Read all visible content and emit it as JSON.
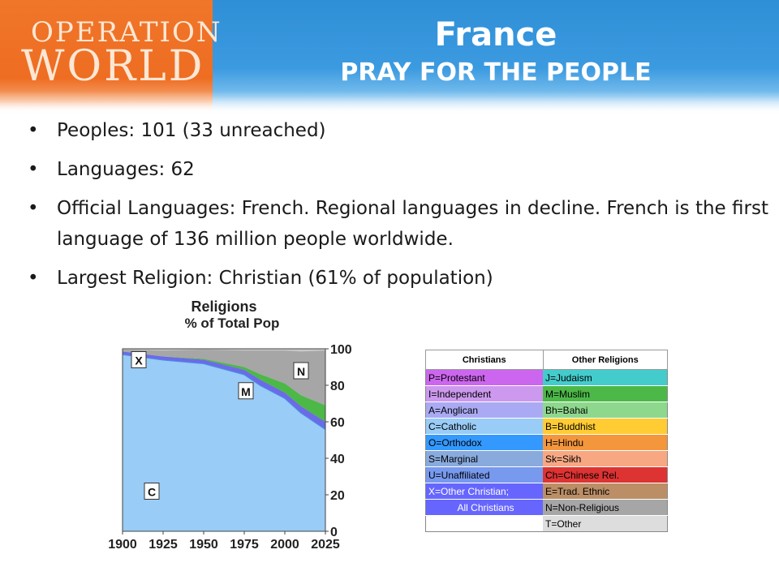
{
  "logo": {
    "line1": "OPERATION",
    "line2": "WORLD"
  },
  "header": {
    "title": "France",
    "subtitle": "PRAY FOR THE PEOPLE"
  },
  "bullets": [
    {
      "text": "Peoples: 101 (33 unreached)"
    },
    {
      "text": "Languages: 62"
    },
    {
      "text": "Official Languages: French. Regional languages in decline. French is the first language of 136 million people worldwide."
    },
    {
      "text": "Largest Religion: Christian (61% of population)"
    }
  ],
  "colors": {
    "catholic": "#99ccf6",
    "orthodox": "#4a8fe6",
    "independent": "#6b6be8",
    "muslim": "#4cb848",
    "nonreligious": "#a6a6a6",
    "other_top": "#c8c8c8"
  },
  "chart_data": {
    "type": "area",
    "title": "Religions",
    "subtitle": "% of Total Pop",
    "x": [
      1900,
      1925,
      1950,
      1975,
      1985,
      2000,
      2010,
      2025
    ],
    "xlim": [
      1900,
      2025
    ],
    "ylim": [
      0,
      100
    ],
    "x_ticks": [
      "1900",
      "1925",
      "1950",
      "1975",
      "2000",
      "2025"
    ],
    "y_ticks": [
      "0",
      "20",
      "40",
      "60",
      "80",
      "100"
    ],
    "series": [
      {
        "name": "C",
        "values": [
          97,
          94,
          92,
          86,
          80,
          73,
          65,
          56
        ]
      },
      {
        "name": "X",
        "values": [
          1.5,
          1.8,
          2,
          2.5,
          3,
          3,
          3.5,
          4
        ]
      },
      {
        "name": "M",
        "values": [
          0,
          0,
          0.5,
          1.5,
          3,
          5,
          6,
          9
        ]
      },
      {
        "name": "N",
        "values": [
          1,
          3.2,
          5,
          9,
          13,
          18,
          24,
          30
        ]
      }
    ],
    "region_labels": [
      "X",
      "C",
      "M",
      "N"
    ]
  },
  "legend": {
    "headers": [
      "Christians",
      "Other Religions"
    ],
    "rows": [
      {
        "left": "P=Protestant",
        "right": "J=Judaism",
        "lc": "#cc66ee",
        "rc": "#44cccc"
      },
      {
        "left": "I=Independent",
        "right": "M=Muslim",
        "lc": "#cc99ee",
        "rc": "#4cb848"
      },
      {
        "left": "A=Anglican",
        "right": "Bh=Bahai",
        "lc": "#aaaaf4",
        "rc": "#8ed88e"
      },
      {
        "left": "C=Catholic",
        "right": "B=Buddhist",
        "lc": "#99ccf6",
        "rc": "#ffcc33"
      },
      {
        "left": "O=Orthodox",
        "right": "H=Hindu",
        "lc": "#3399ff",
        "rc": "#f4963c"
      },
      {
        "left": "S=Marginal",
        "right": "Sk=Sikh",
        "lc": "#88aadd",
        "rc": "#f7a883"
      },
      {
        "left": "U=Unaffiliated",
        "right": "Ch=Chinese Rel.",
        "lc": "#7799ee",
        "rc": "#dd3333"
      },
      {
        "left": "X=Other Christian;",
        "right": "E=Trad. Ethnic",
        "lc": "#6666ff",
        "rc": "#bb8e66"
      },
      {
        "left": "All Christians",
        "right": "N=Non-Religious",
        "lc": "#6666ff",
        "rc": "#a6a6a6"
      },
      {
        "left": "",
        "right": "T=Other",
        "lc": "#ffffff",
        "rc": "#dddddd"
      }
    ]
  }
}
